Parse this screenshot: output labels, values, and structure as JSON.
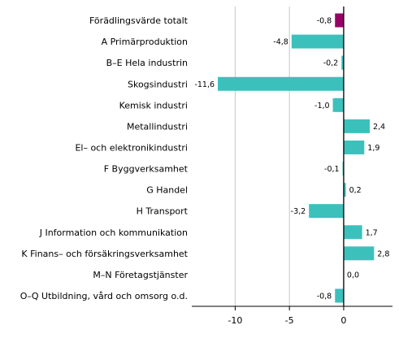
{
  "chart_data": {
    "type": "bar",
    "orientation": "horizontal",
    "categories": [
      "Förädlingsvärde totalt",
      "A Primärproduktion",
      "B–E Hela industrin",
      "Skogsindustri",
      "Kemisk industri",
      "Metallindustri",
      "El– och elektronikindustri",
      "F Byggverksamhet",
      "G Handel",
      "H Transport",
      "J Information och kommunikation",
      "K Finans– och försäkringsverksamhet",
      "M–N Företagstjänster",
      "O–Q Utbildning, vård och omsorg o.d."
    ],
    "values": [
      -0.8,
      -4.8,
      -0.2,
      -11.6,
      -1.0,
      2.4,
      1.9,
      -0.1,
      0.2,
      -3.2,
      1.7,
      2.8,
      0.0,
      -0.8
    ],
    "value_labels": [
      "-0,8",
      "-4,8",
      "-0,2",
      "-11,6",
      "-1,0",
      "2,4",
      "1,9",
      "-0,1",
      "0,2",
      "-3,2",
      "1,7",
      "2,8",
      "0,0",
      "-0,8"
    ],
    "xlim": [
      -14,
      4.5
    ],
    "xticks": [
      -10,
      -5,
      0
    ],
    "xtick_labels": [
      "-10",
      "-5",
      "0"
    ],
    "grid": "vertical",
    "colors": {
      "highlight": "#990066",
      "bar": "#3cc0bc",
      "grid": "#c8c8c8",
      "axis": "#000000"
    },
    "highlight_index": 0
  }
}
